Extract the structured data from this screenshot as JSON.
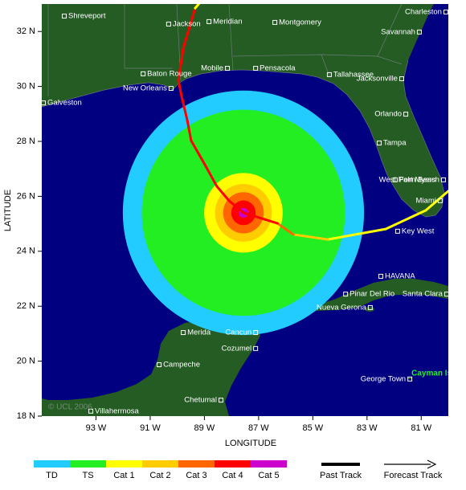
{
  "axes": {
    "x_label": "LONGITUDE",
    "y_label": "LATITUDE",
    "xlim": [
      95,
      80
    ],
    "ylim": [
      18,
      33
    ],
    "xticks": [
      {
        "value": 93,
        "label": "93 W"
      },
      {
        "value": 91,
        "label": "91 W"
      },
      {
        "value": 89,
        "label": "89 W"
      },
      {
        "value": 87,
        "label": "87 W"
      },
      {
        "value": 85,
        "label": "85 W"
      },
      {
        "value": 83,
        "label": "83 W"
      },
      {
        "value": 81,
        "label": "81 W"
      }
    ],
    "yticks": [
      {
        "value": 18,
        "label": "18 N"
      },
      {
        "value": 20,
        "label": "20 N"
      },
      {
        "value": 22,
        "label": "22 N"
      },
      {
        "value": 24,
        "label": "24 N"
      },
      {
        "value": 26,
        "label": "26 N"
      },
      {
        "value": 28,
        "label": "28 N"
      },
      {
        "value": 30,
        "label": "30 N"
      },
      {
        "value": 32,
        "label": "32 N"
      }
    ]
  },
  "legend": {
    "categories": [
      {
        "label": "TD",
        "color": "#22ccff"
      },
      {
        "label": "TS",
        "color": "#22ee22"
      },
      {
        "label": "Cat 1",
        "color": "#ffff00"
      },
      {
        "label": "Cat 2",
        "color": "#ffcc00"
      },
      {
        "label": "Cat 3",
        "color": "#ff6600"
      },
      {
        "label": "Cat 4",
        "color": "#ff0000"
      },
      {
        "label": "Cat 5",
        "color": "#cc00cc"
      }
    ],
    "past_track": "Past Track",
    "forecast_track": "Forecast Track"
  },
  "storm": {
    "center_lon": 87.56,
    "center_lat": 25.4,
    "wind_radii": [
      4.45,
      3.75,
      1.45,
      1.05,
      0.75,
      0.45,
      0.18
    ]
  },
  "track": [
    {
      "lon": 80.0,
      "lat": 26.19,
      "category": 2
    },
    {
      "lon": 80.83,
      "lat": 25.49,
      "category": 2
    },
    {
      "lon": 82.31,
      "lat": 24.81,
      "category": 2
    },
    {
      "lon": 84.45,
      "lat": 24.43,
      "category": 2
    },
    {
      "lon": 85.72,
      "lat": 24.61,
      "category": 3
    },
    {
      "lon": 86.31,
      "lat": 25.02,
      "category": 4
    },
    {
      "lon": 87.56,
      "lat": 25.4,
      "category": 5
    },
    {
      "lon": 88.09,
      "lat": 25.84,
      "category": 5
    },
    {
      "lon": 88.54,
      "lat": 26.36,
      "category": 5
    },
    {
      "lon": 88.98,
      "lat": 27.15,
      "category": 5
    },
    {
      "lon": 89.49,
      "lat": 28.03,
      "category": 5
    },
    {
      "lon": 89.63,
      "lat": 28.76,
      "category": 5
    },
    {
      "lon": 89.84,
      "lat": 29.64,
      "category": 5
    },
    {
      "lon": 89.96,
      "lat": 30.22,
      "category": 5
    },
    {
      "lon": 89.78,
      "lat": 31.39,
      "category": 5
    },
    {
      "lon": 89.34,
      "lat": 32.85,
      "category": 5
    },
    {
      "lon": 89.16,
      "lat": 33.06,
      "category": 2
    }
  ],
  "cities": [
    {
      "name": "Shreveport",
      "lon": 94.17,
      "lat": 32.56
    },
    {
      "name": "Jackson",
      "lon": 90.32,
      "lat": 32.27
    },
    {
      "name": "Meridian",
      "lon": 88.83,
      "lat": 32.36
    },
    {
      "name": "Montgomery",
      "lon": 86.4,
      "lat": 32.33
    },
    {
      "name": "Charleston",
      "lon": 80.09,
      "lat": 32.71
    },
    {
      "name": "Savannah",
      "lon": 81.07,
      "lat": 31.98
    },
    {
      "name": "Baton Rouge",
      "lon": 91.26,
      "lat": 30.46
    },
    {
      "name": "Mobile",
      "lon": 88.15,
      "lat": 30.66
    },
    {
      "name": "Pensacola",
      "lon": 87.11,
      "lat": 30.66
    },
    {
      "name": "Tallahassee",
      "lon": 84.39,
      "lat": 30.43
    },
    {
      "name": "Jacksonville",
      "lon": 81.72,
      "lat": 30.28
    },
    {
      "name": "New Orleans",
      "lon": 90.23,
      "lat": 29.93
    },
    {
      "name": "Galveston",
      "lon": 94.94,
      "lat": 29.4
    },
    {
      "name": "Orlando",
      "lon": 81.57,
      "lat": 28.99
    },
    {
      "name": "Tampa",
      "lon": 82.55,
      "lat": 27.94
    },
    {
      "name": "West Palm Beach",
      "lon": 80.18,
      "lat": 26.6
    },
    {
      "name": "Fort Myers",
      "lon": 81.96,
      "lat": 26.6
    },
    {
      "name": "Miami",
      "lon": 80.3,
      "lat": 25.84
    },
    {
      "name": "Key West",
      "lon": 81.87,
      "lat": 24.73
    },
    {
      "name": "HAVANA",
      "lon": 82.49,
      "lat": 23.09
    },
    {
      "name": "Pinar Del Rio",
      "lon": 83.79,
      "lat": 22.44
    },
    {
      "name": "Santa Clara",
      "lon": 80.06,
      "lat": 22.44
    },
    {
      "name": "Nueva Gerona",
      "lon": 82.88,
      "lat": 21.95
    },
    {
      "name": "Merida",
      "lon": 89.78,
      "lat": 21.04
    },
    {
      "name": "Cancun",
      "lon": 87.11,
      "lat": 21.04
    },
    {
      "name": "Cozumel",
      "lon": 87.11,
      "lat": 20.46
    },
    {
      "name": "Campeche",
      "lon": 90.67,
      "lat": 19.87
    },
    {
      "name": "George Town",
      "lon": 81.42,
      "lat": 19.35
    },
    {
      "name": "Chetumal",
      "lon": 88.39,
      "lat": 18.58
    },
    {
      "name": "Villahermosa",
      "lon": 93.19,
      "lat": 18.18
    }
  ],
  "region_label": {
    "text": "Cayman Is",
    "lon": 81.36,
    "lat": 19.55
  },
  "credit": "© UCL 2006"
}
